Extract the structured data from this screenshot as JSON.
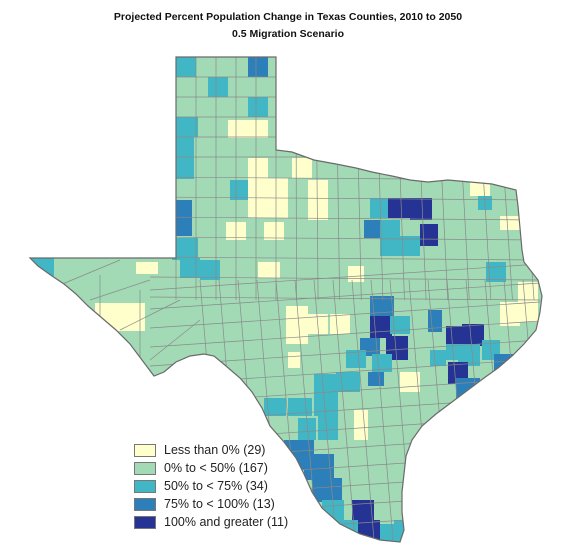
{
  "title": "Projected Percent Population Change in Texas Counties, 2010 to 2050",
  "subtitle": "0.5 Migration Scenario",
  "colors": {
    "negative": "#ffffcc",
    "low": "#a1dab4",
    "mid": "#41b6c4",
    "high": "#2c7fb8",
    "top": "#253494",
    "border": "#8a8a8a"
  },
  "legend": [
    {
      "label": "Less than 0% (29)",
      "color": "#ffffcc"
    },
    {
      "label": "0% to < 50% (167)",
      "color": "#a1dab4"
    },
    {
      "label": "50% to < 75% (34)",
      "color": "#41b6c4"
    },
    {
      "label": "75% to < 100% (13)",
      "color": "#2c7fb8"
    },
    {
      "label": "100% and greater (11)",
      "color": "#253494"
    }
  ]
}
